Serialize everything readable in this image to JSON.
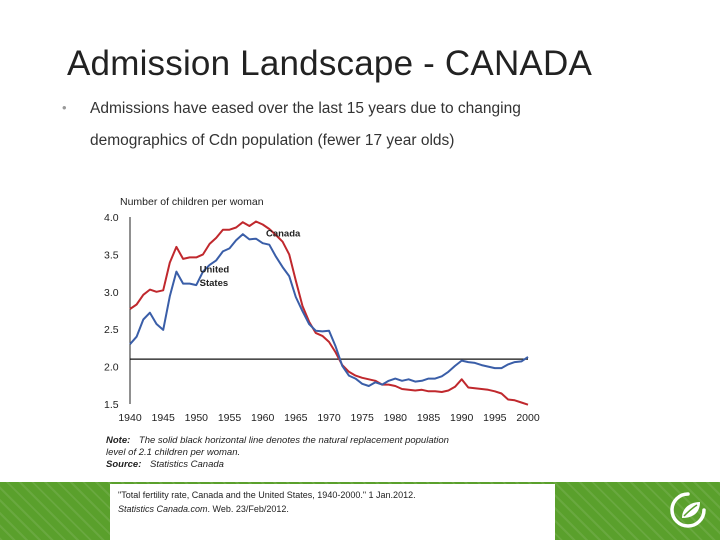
{
  "slide": {
    "title": "Admission Landscape - CANADA",
    "bullet_symbol": "•",
    "bullet_line1": "Admissions have eased over the last 15 years due to changing",
    "bullet_line2": "demographics of Cdn population (fewer 17 year olds)"
  },
  "chart_data": {
    "type": "line",
    "ylabel": "Number of children per woman",
    "ylim": [
      1.5,
      4.0
    ],
    "yticks": [
      "4.0",
      "3.5",
      "3.0",
      "2.5",
      "2.0",
      "1.5"
    ],
    "xlim": [
      1940,
      2000
    ],
    "xticks": [
      "1940",
      "1945",
      "1950",
      "1955",
      "1960",
      "1965",
      "1970",
      "1975",
      "1980",
      "1985",
      "1990",
      "1995",
      "2000"
    ],
    "reference_line": 2.1,
    "series": [
      {
        "name": "Canada",
        "color": "#c0282d",
        "x": [
          1940,
          1941,
          1942,
          1943,
          1944,
          1945,
          1946,
          1947,
          1948,
          1949,
          1950,
          1951,
          1952,
          1953,
          1954,
          1955,
          1956,
          1957,
          1958,
          1959,
          1960,
          1961,
          1962,
          1963,
          1964,
          1965,
          1966,
          1967,
          1968,
          1969,
          1970,
          1971,
          1972,
          1973,
          1974,
          1975,
          1976,
          1977,
          1978,
          1979,
          1980,
          1981,
          1982,
          1983,
          1984,
          1985,
          1986,
          1987,
          1988,
          1989,
          1990,
          1991,
          1992,
          1993,
          1994,
          1995,
          1996,
          1997,
          1998,
          1999,
          2000
        ],
        "y": [
          2.77,
          2.83,
          2.96,
          3.03,
          3.0,
          3.02,
          3.39,
          3.6,
          3.44,
          3.46,
          3.46,
          3.5,
          3.64,
          3.72,
          3.83,
          3.83,
          3.86,
          3.93,
          3.88,
          3.94,
          3.9,
          3.84,
          3.76,
          3.67,
          3.5,
          3.15,
          2.81,
          2.6,
          2.45,
          2.41,
          2.33,
          2.19,
          2.02,
          1.93,
          1.88,
          1.85,
          1.83,
          1.81,
          1.76,
          1.76,
          1.74,
          1.7,
          1.69,
          1.68,
          1.69,
          1.67,
          1.67,
          1.66,
          1.68,
          1.73,
          1.83,
          1.72,
          1.71,
          1.7,
          1.69,
          1.67,
          1.64,
          1.56,
          1.55,
          1.52,
          1.49
        ]
      },
      {
        "name": "United States",
        "color": "#3a5ea8",
        "x": [
          1940,
          1941,
          1942,
          1943,
          1944,
          1945,
          1946,
          1947,
          1948,
          1949,
          1950,
          1951,
          1952,
          1953,
          1954,
          1955,
          1956,
          1957,
          1958,
          1959,
          1960,
          1961,
          1962,
          1963,
          1964,
          1965,
          1966,
          1967,
          1968,
          1969,
          1970,
          1971,
          1972,
          1973,
          1974,
          1975,
          1976,
          1977,
          1978,
          1979,
          1980,
          1981,
          1982,
          1983,
          1984,
          1985,
          1986,
          1987,
          1988,
          1989,
          1990,
          1991,
          1992,
          1993,
          1994,
          1995,
          1996,
          1997,
          1998,
          1999,
          2000
        ],
        "y": [
          2.3,
          2.4,
          2.63,
          2.72,
          2.57,
          2.49,
          2.94,
          3.27,
          3.11,
          3.11,
          3.09,
          3.27,
          3.36,
          3.42,
          3.54,
          3.58,
          3.69,
          3.77,
          3.7,
          3.71,
          3.65,
          3.63,
          3.47,
          3.33,
          3.21,
          2.93,
          2.74,
          2.57,
          2.48,
          2.47,
          2.48,
          2.27,
          2.01,
          1.88,
          1.84,
          1.77,
          1.74,
          1.79,
          1.76,
          1.81,
          1.84,
          1.81,
          1.83,
          1.8,
          1.81,
          1.84,
          1.84,
          1.87,
          1.93,
          2.01,
          2.08,
          2.06,
          2.05,
          2.02,
          2.0,
          1.98,
          1.98,
          2.03,
          2.06,
          2.07,
          2.13
        ]
      }
    ],
    "annotations": [
      {
        "text": "Canada",
        "x": 1960.5,
        "y": 3.74
      },
      {
        "text": "United",
        "x": 1950.5,
        "y": 3.26
      },
      {
        "text": "States",
        "x": 1950.5,
        "y": 3.08
      }
    ]
  },
  "note": {
    "label": "Note:",
    "text1": "The solid black horizontal line denotes the natural replacement population",
    "text2": "level of 2.1 children per woman.",
    "source_label": "Source:",
    "source_text": "Statistics Canada"
  },
  "citation": {
    "line1": "\"Total fertility rate, Canada and the United States, 1940-2000.\" 1 Jan.2012.",
    "line2_italic": "Statistics Canada.com",
    "line2_rest": ". Web. 23/Feb/2012."
  },
  "colors": {
    "footer_green": "#5aa02c",
    "canada_line": "#c0282d",
    "us_line": "#3a5ea8"
  },
  "icons": {
    "logo": "leaf-logo-icon"
  }
}
